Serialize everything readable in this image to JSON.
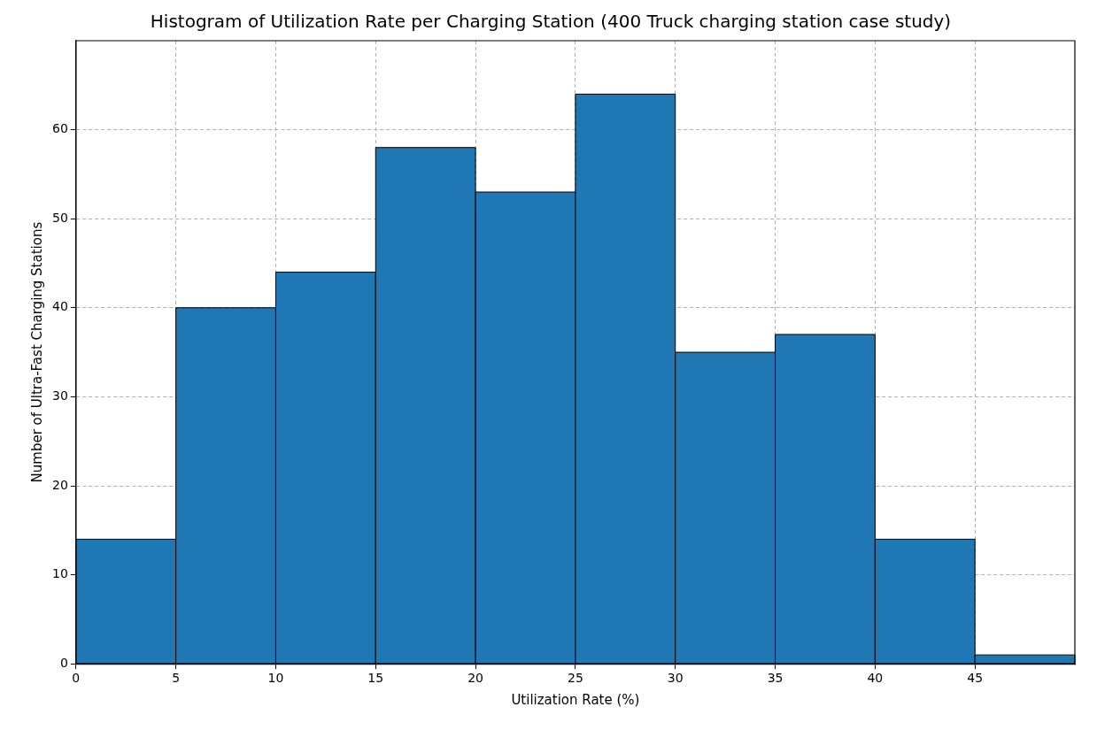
{
  "chart_data": {
    "type": "histogram",
    "title": "Histogram of Utilization Rate per Charging Station (400 Truck charging station case study)",
    "xlabel": "Utilization Rate (%)",
    "ylabel": "Number of Ultra-Fast Charging Stations",
    "bins": [
      0,
      5,
      10,
      15,
      20,
      25,
      30,
      35,
      40,
      45,
      50
    ],
    "values": [
      14,
      40,
      44,
      58,
      53,
      64,
      35,
      37,
      14,
      1
    ],
    "color": "#1f77b4",
    "xlim": [
      0,
      50
    ],
    "xticks": [
      0,
      5,
      10,
      15,
      20,
      25,
      30,
      35,
      40,
      45
    ],
    "ylim": [
      0,
      70
    ],
    "yticks": [
      0,
      10,
      20,
      30,
      40,
      50,
      60
    ],
    "grid": true
  }
}
